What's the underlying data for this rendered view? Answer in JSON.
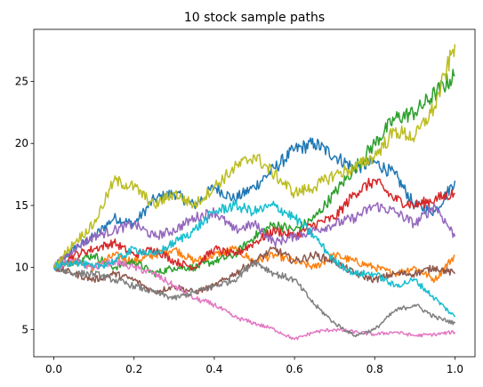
{
  "chart_data": {
    "type": "line",
    "title": "10 stock sample paths",
    "xlabel": "",
    "ylabel": "",
    "xlim": [
      -0.05,
      1.05
    ],
    "ylim": [
      2.8,
      29.2
    ],
    "xticks": [
      0.0,
      0.2,
      0.4,
      0.6,
      0.8,
      1.0
    ],
    "xtick_labels": [
      "0.0",
      "0.2",
      "0.4",
      "0.6",
      "0.8",
      "1.0"
    ],
    "yticks": [
      5,
      10,
      15,
      20,
      25
    ],
    "ytick_labels": [
      "5",
      "10",
      "15",
      "20",
      "25"
    ],
    "grid": false,
    "legend": "none",
    "x": [
      0.0,
      0.05,
      0.1,
      0.15,
      0.2,
      0.25,
      0.3,
      0.35,
      0.4,
      0.45,
      0.5,
      0.55,
      0.6,
      0.65,
      0.7,
      0.75,
      0.8,
      0.85,
      0.9,
      0.95,
      1.0
    ],
    "series": [
      {
        "color": "#1f77b4",
        "values": [
          10.0,
          11.5,
          12.5,
          14.0,
          13.5,
          15.5,
          16.0,
          15.0,
          16.5,
          15.5,
          16.5,
          18.0,
          19.5,
          20.0,
          19.0,
          18.0,
          18.5,
          17.5,
          15.0,
          14.5,
          17.0
        ]
      },
      {
        "color": "#ff7f0e",
        "values": [
          10.0,
          10.5,
          10.0,
          11.0,
          10.5,
          11.0,
          11.5,
          10.5,
          11.0,
          11.5,
          10.5,
          11.0,
          10.5,
          10.0,
          11.0,
          10.5,
          10.0,
          9.5,
          10.0,
          9.0,
          11.0
        ]
      },
      {
        "color": "#2ca02c",
        "values": [
          10.0,
          10.5,
          11.0,
          10.0,
          10.5,
          9.5,
          10.0,
          10.0,
          10.5,
          11.0,
          12.5,
          13.5,
          13.0,
          14.0,
          16.0,
          18.0,
          20.0,
          22.0,
          22.5,
          24.0,
          25.5
        ]
      },
      {
        "color": "#d62728",
        "values": [
          10.0,
          11.0,
          11.5,
          12.0,
          11.0,
          11.5,
          10.5,
          10.0,
          11.5,
          11.0,
          12.0,
          13.0,
          12.5,
          13.5,
          14.0,
          16.0,
          17.0,
          15.5,
          15.0,
          15.5,
          16.0
        ]
      },
      {
        "color": "#9467bd",
        "values": [
          10.0,
          11.5,
          12.5,
          13.0,
          13.5,
          12.5,
          13.0,
          14.0,
          14.5,
          13.0,
          13.5,
          12.0,
          12.5,
          13.0,
          13.5,
          14.0,
          15.0,
          14.5,
          13.5,
          15.0,
          12.5
        ]
      },
      {
        "color": "#8c564b",
        "values": [
          10.0,
          9.5,
          9.0,
          9.5,
          9.0,
          8.0,
          8.5,
          8.0,
          8.5,
          9.5,
          10.5,
          11.5,
          10.5,
          11.0,
          10.5,
          9.5,
          9.0,
          9.5,
          9.5,
          10.0,
          9.5
        ]
      },
      {
        "color": "#e377c2",
        "values": [
          10.0,
          10.5,
          10.0,
          10.5,
          10.0,
          9.5,
          8.5,
          7.5,
          7.0,
          6.0,
          5.5,
          5.0,
          4.2,
          4.8,
          5.0,
          4.8,
          4.6,
          4.8,
          4.5,
          4.6,
          4.8
        ]
      },
      {
        "color": "#7f7f7f",
        "values": [
          10.0,
          9.5,
          9.5,
          9.0,
          8.5,
          8.0,
          7.5,
          8.0,
          8.5,
          9.0,
          10.5,
          9.5,
          9.0,
          7.0,
          5.5,
          4.5,
          5.0,
          6.5,
          7.0,
          6.0,
          5.5
        ]
      },
      {
        "color": "#bcbd22",
        "values": [
          10.0,
          12.0,
          13.5,
          17.0,
          16.5,
          15.0,
          16.0,
          15.0,
          16.5,
          18.0,
          19.0,
          17.5,
          16.0,
          16.5,
          17.5,
          18.0,
          19.0,
          21.0,
          20.5,
          23.0,
          28.0
        ]
      },
      {
        "color": "#17becf",
        "values": [
          10.0,
          10.5,
          10.0,
          10.5,
          11.5,
          11.0,
          12.0,
          13.0,
          14.5,
          15.0,
          14.5,
          15.0,
          14.0,
          12.5,
          10.5,
          9.5,
          9.5,
          8.5,
          9.0,
          7.5,
          6.0
        ]
      }
    ]
  }
}
